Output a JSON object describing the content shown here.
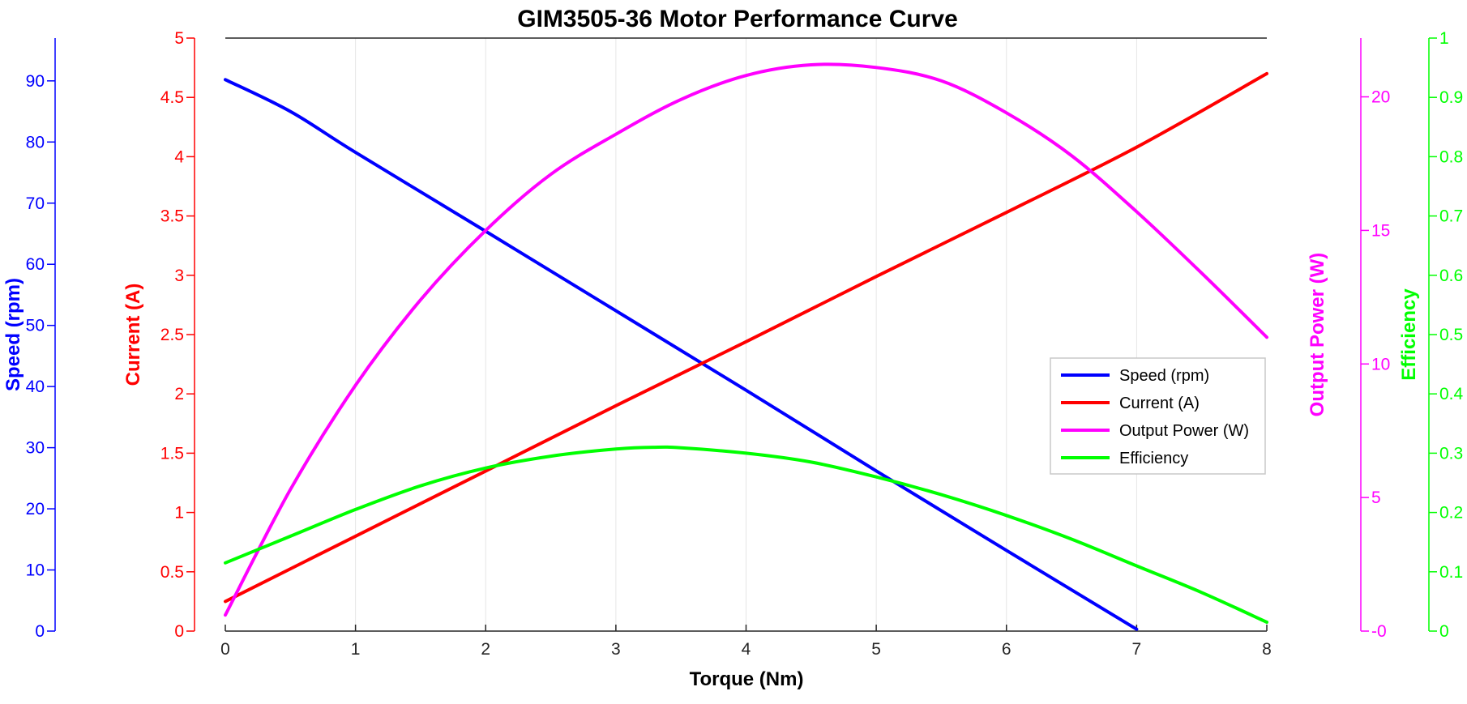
{
  "chart_data": {
    "type": "line",
    "title": "GIM3505-36 Motor Performance Curve",
    "xlabel": "Torque (Nm)",
    "xlim": [
      0,
      8
    ],
    "xticks": [
      "0",
      "1",
      "2",
      "3",
      "4",
      "5",
      "6",
      "7",
      "8"
    ],
    "grid": "vertical",
    "legend_position": "center-right",
    "axes": [
      {
        "key": "speed",
        "label": "Speed (rpm)",
        "color": "#0000ff",
        "range": [
          0,
          97
        ],
        "ticks": [
          "0",
          "10",
          "20",
          "30",
          "40",
          "50",
          "60",
          "70",
          "80",
          "90"
        ],
        "tick_values": [
          0,
          10,
          20,
          30,
          40,
          50,
          60,
          70,
          80,
          90
        ]
      },
      {
        "key": "current",
        "label": "Current (A)",
        "color": "#ff0000",
        "range": [
          0,
          5
        ],
        "ticks": [
          "0",
          "0.5",
          "1",
          "1.5",
          "2",
          "2.5",
          "3",
          "3.5",
          "4",
          "4.5",
          "5"
        ],
        "tick_values": [
          0,
          0.5,
          1,
          1.5,
          2,
          2.5,
          3,
          3.5,
          4,
          4.5,
          5
        ]
      },
      {
        "key": "power",
        "label": "Output Power (W)",
        "color": "#ff00ff",
        "range": [
          0,
          22.2
        ],
        "ticks": [
          "-0",
          "5",
          "10",
          "15",
          "20"
        ],
        "tick_values": [
          0,
          5,
          10,
          15,
          20
        ]
      },
      {
        "key": "efficiency",
        "label": "Efficiency",
        "color": "#00ff00",
        "range": [
          0,
          1
        ],
        "ticks": [
          "0",
          "0.1",
          "0.2",
          "0.3",
          "0.4",
          "0.5",
          "0.6",
          "0.7",
          "0.8",
          "0.9",
          "1"
        ],
        "tick_values": [
          0,
          0.1,
          0.2,
          0.3,
          0.4,
          0.5,
          0.6,
          0.7,
          0.8,
          0.9,
          1
        ]
      }
    ],
    "series": [
      {
        "name": "Speed (rpm)",
        "axis": "speed",
        "color": "#0000ff",
        "x": [
          0,
          0.5,
          1,
          2,
          3,
          4,
          5,
          6,
          7
        ],
        "y": [
          90.2,
          85,
          78.3,
          65.4,
          52.4,
          39.4,
          26.2,
          13.2,
          0.3
        ]
      },
      {
        "name": "Current (A)",
        "axis": "current",
        "color": "#ff0000",
        "x": [
          0,
          1,
          2,
          3,
          4,
          5,
          6,
          7,
          8
        ],
        "y": [
          0.25,
          0.8,
          1.35,
          1.9,
          2.44,
          2.99,
          3.53,
          4.08,
          4.7
        ]
      },
      {
        "name": "Output Power (W)",
        "axis": "power",
        "color": "#ff00ff",
        "x": [
          0,
          0.5,
          1,
          1.5,
          2,
          2.5,
          3,
          3.5,
          4,
          4.5,
          5,
          5.5,
          6,
          6.5,
          7,
          7.5,
          8
        ],
        "y": [
          0.6,
          5.3,
          9.2,
          12.4,
          15,
          17.1,
          18.6,
          19.9,
          20.8,
          21.2,
          21.1,
          20.6,
          19.4,
          17.8,
          15.7,
          13.4,
          11
        ]
      },
      {
        "name": "Efficiency",
        "axis": "efficiency",
        "color": "#00ff00",
        "x": [
          0,
          0.5,
          1,
          1.5,
          2,
          2.5,
          3,
          3.3,
          3.5,
          4,
          4.5,
          5,
          5.5,
          6,
          6.5,
          7,
          7.5,
          8
        ],
        "y": [
          0.115,
          0.16,
          0.205,
          0.245,
          0.275,
          0.295,
          0.307,
          0.31,
          0.309,
          0.3,
          0.285,
          0.26,
          0.23,
          0.195,
          0.155,
          0.11,
          0.065,
          0.015
        ]
      }
    ]
  }
}
